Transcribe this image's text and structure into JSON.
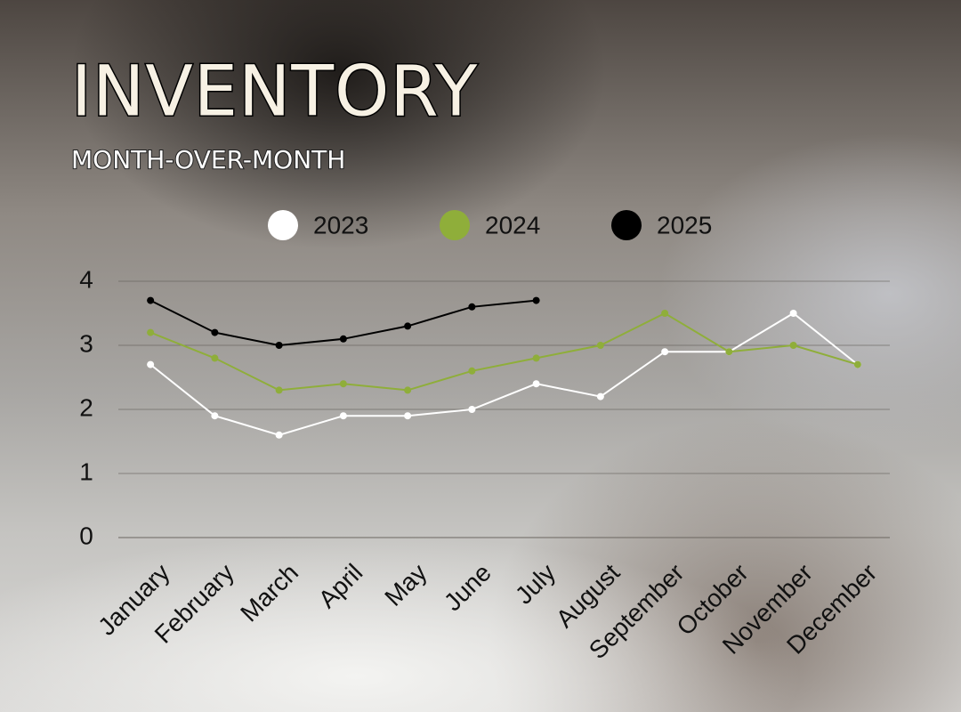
{
  "chart_data": {
    "type": "line",
    "title": "INVENTORY",
    "subtitle": "MONTH-OVER-MONTH",
    "categories": [
      "January",
      "February",
      "March",
      "April",
      "May",
      "June",
      "July",
      "August",
      "September",
      "October",
      "November",
      "December"
    ],
    "series": [
      {
        "name": "2023",
        "color": "#ffffff",
        "values": [
          2.7,
          1.9,
          1.6,
          1.9,
          1.9,
          2.0,
          2.4,
          2.2,
          2.9,
          2.9,
          3.5,
          2.7
        ]
      },
      {
        "name": "2024",
        "color": "#8fae3a",
        "values": [
          3.2,
          2.8,
          2.3,
          2.4,
          2.3,
          2.6,
          2.8,
          3.0,
          3.5,
          2.9,
          3.0,
          2.7
        ]
      },
      {
        "name": "2025",
        "color": "#000000",
        "values": [
          3.7,
          3.2,
          3.0,
          3.1,
          3.3,
          3.6,
          3.7,
          null,
          null,
          null,
          null,
          null
        ]
      }
    ],
    "ylim": [
      0,
      4
    ],
    "yticks": [
      0,
      1,
      2,
      3,
      4
    ],
    "grid": true,
    "legend": "top"
  }
}
